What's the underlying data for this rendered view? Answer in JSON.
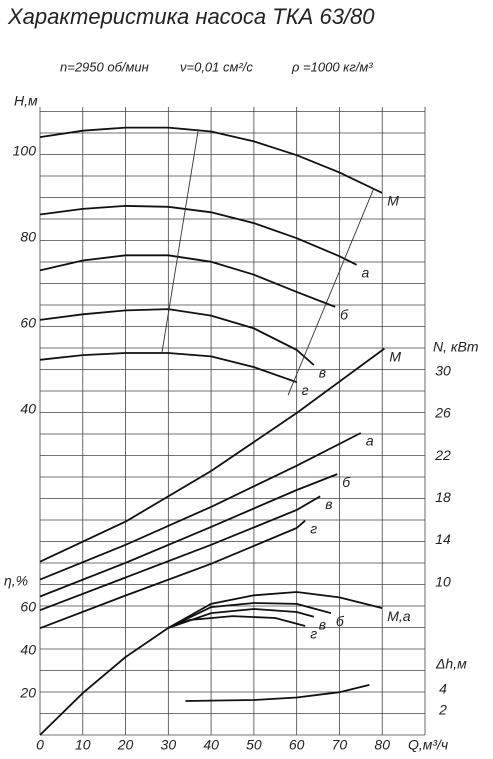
{
  "chart_data": [
    {
      "type": "line",
      "title": "Характеристика насоса ТКА 63/80",
      "subtitle": [
        "n=2950 об/мин",
        "ν=0,01 см²/с",
        "ρ =1000 кг/м³"
      ],
      "xlabel": "Q,м³/ч",
      "xlim": [
        0,
        90
      ],
      "xticks": [
        0,
        10,
        20,
        30,
        40,
        50,
        60,
        70,
        80
      ],
      "ylabel": "H,м",
      "ylim": [
        40,
        110
      ],
      "yticks": [
        40,
        60,
        80,
        100
      ],
      "series": [
        {
          "name": "M",
          "x": [
            0,
            10,
            20,
            30,
            40,
            50,
            60,
            70,
            80
          ],
          "values": [
            103,
            104.5,
            105.2,
            105.2,
            104.3,
            102,
            98.8,
            94.8,
            90
          ]
        },
        {
          "name": "а",
          "x": [
            0,
            10,
            20,
            30,
            40,
            50,
            60,
            70,
            74
          ],
          "values": [
            85,
            86.3,
            87,
            86.8,
            85.5,
            83,
            79.5,
            75.3,
            73.3
          ]
        },
        {
          "name": "б",
          "x": [
            0,
            10,
            20,
            30,
            40,
            50,
            60,
            69
          ],
          "values": [
            72,
            74.3,
            75.5,
            75.5,
            74,
            71,
            67,
            63.5
          ]
        },
        {
          "name": "в",
          "x": [
            0,
            10,
            20,
            30,
            40,
            50,
            60,
            64
          ],
          "values": [
            60.5,
            61.8,
            62.7,
            63,
            61.5,
            58.5,
            53.5,
            50
          ]
        },
        {
          "name": "г",
          "x": [
            0,
            10,
            20,
            30,
            40,
            50,
            60
          ],
          "values": [
            51.2,
            52.3,
            52.8,
            52.8,
            52,
            49.5,
            46
          ]
        }
      ],
      "lines": [
        {
          "x": [
            37,
            28.5
          ],
          "values": [
            104.8,
            52.8
          ]
        },
        {
          "x": [
            78,
            58
          ],
          "values": [
            91,
            43
          ]
        }
      ]
    },
    {
      "type": "line",
      "ylabel": "N, кВт",
      "ylim": [
        4,
        32
      ],
      "yticks": [
        10,
        14,
        18,
        22,
        26,
        30
      ],
      "series": [
        {
          "name": "M",
          "x": [
            0,
            20,
            40,
            60,
            80.5
          ],
          "values": [
            11.8,
            15.6,
            20.4,
            25.9,
            32
          ]
        },
        {
          "name": "а",
          "x": [
            0,
            20,
            40,
            60,
            75
          ],
          "values": [
            10.1,
            13.4,
            17,
            20.9,
            24
          ]
        },
        {
          "name": "б",
          "x": [
            0,
            20,
            40,
            60,
            69.5
          ],
          "values": [
            8.5,
            11.7,
            15.1,
            18.6,
            20.1
          ]
        },
        {
          "name": "в",
          "x": [
            0,
            20,
            40,
            60,
            65.5
          ],
          "values": [
            7.2,
            10.3,
            13.4,
            16.7,
            18
          ]
        },
        {
          "name": "г",
          "x": [
            0,
            20,
            40,
            60,
            62
          ],
          "values": [
            5.5,
            8.6,
            11.6,
            15,
            15.7
          ]
        }
      ]
    },
    {
      "type": "line",
      "ylabel": "η,%",
      "ylim": [
        0,
        70
      ],
      "yticks": [
        20,
        40,
        60
      ],
      "series": [
        {
          "name": "M,а",
          "x": [
            0,
            10,
            20,
            30,
            40,
            50,
            60,
            70,
            80
          ],
          "values": [
            0,
            19.5,
            36.3,
            49.8,
            61,
            65,
            66.5,
            64,
            59
          ]
        },
        {
          "name": "б",
          "x": [
            30,
            40,
            50,
            60,
            68
          ],
          "values": [
            49.8,
            59.5,
            61.4,
            61,
            56.7
          ]
        },
        {
          "name": "в",
          "x": [
            30,
            40,
            50,
            60,
            64
          ],
          "values": [
            49.8,
            56.7,
            58.6,
            57.2,
            55
          ]
        },
        {
          "name": "г",
          "x": [
            30,
            35,
            45,
            55,
            62
          ],
          "values": [
            49.8,
            53.5,
            55.3,
            54.4,
            50.7
          ]
        }
      ]
    },
    {
      "type": "line",
      "ylabel": "Δh,м",
      "ylim": [
        0,
        6
      ],
      "yticks": [
        2,
        4
      ],
      "series": [
        {
          "x": [
            34,
            50,
            60,
            70,
            77
          ],
          "values": [
            2.76,
            2.86,
            3.1,
            3.6,
            4.3
          ]
        }
      ]
    }
  ]
}
